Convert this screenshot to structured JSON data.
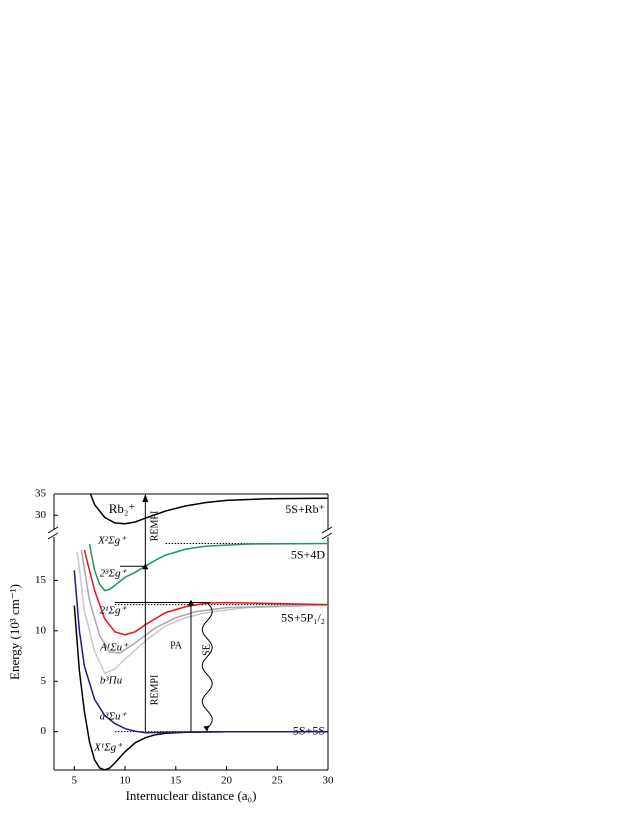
{
  "chart_data": {
    "type": "line",
    "x_label": "Internuclear distance (a₀)",
    "y_label": "Energy (10³ cm⁻¹)",
    "xlim": [
      3,
      30
    ],
    "xticks": [
      5,
      10,
      15,
      20,
      25,
      30
    ],
    "ylim": [
      -3.8,
      19.2
    ],
    "yticks": [
      0,
      5,
      10,
      15
    ],
    "ylim_upper": [
      27,
      35
    ],
    "yticks_upper": [
      30,
      35
    ],
    "series": [
      {
        "name": "X¹Σg⁺",
        "color": "#000000",
        "panel": "lower",
        "x": [
          5,
          5.5,
          6,
          6.5,
          7,
          7.5,
          8,
          8.5,
          9,
          10,
          11,
          12,
          13,
          14,
          16,
          20,
          30
        ],
        "values": [
          12.5,
          6,
          2,
          -1,
          -2.8,
          -3.6,
          -3.8,
          -3.6,
          -3.1,
          -2,
          -1.1,
          -0.6,
          -0.3,
          -0.15,
          -0.05,
          0,
          0
        ]
      },
      {
        "name": "a³Σu⁺",
        "color": "#1c1c8c",
        "panel": "lower",
        "x": [
          5,
          5.5,
          6,
          7,
          8,
          9,
          10,
          11,
          12,
          14,
          20,
          30
        ],
        "values": [
          16,
          10,
          6.5,
          3.2,
          1.6,
          0.8,
          0.3,
          0.05,
          -0.1,
          -0.05,
          0,
          0
        ]
      },
      {
        "name": "b³Πu",
        "color": "#c8c8c8",
        "panel": "lower",
        "x": [
          5.3,
          6,
          7,
          8,
          9,
          10,
          12,
          14,
          16,
          18,
          22,
          30
        ],
        "values": [
          17.8,
          12,
          8,
          5.8,
          6.2,
          7.2,
          9,
          10.5,
          11.3,
          11.8,
          12.3,
          12.55
        ]
      },
      {
        "name": "A¹Σu⁺",
        "color": "#a8a8a8",
        "panel": "lower",
        "x": [
          5.7,
          6.5,
          7.5,
          8.5,
          9.5,
          11,
          13,
          15,
          17,
          20,
          30
        ],
        "values": [
          18,
          13,
          9.5,
          7.9,
          7.8,
          8.8,
          10.3,
          11.3,
          11.9,
          12.3,
          12.58
        ]
      },
      {
        "name": "2¹Σg⁺",
        "color": "#e8131a",
        "panel": "lower",
        "x": [
          6,
          7,
          8,
          9,
          10,
          11,
          12,
          14,
          16,
          18,
          20,
          30
        ],
        "values": [
          18,
          14,
          11.2,
          9.9,
          9.6,
          9.9,
          10.6,
          11.8,
          12.4,
          12.75,
          12.8,
          12.6
        ]
      },
      {
        "name": "2³Σg⁺",
        "color": "#1b9a5b",
        "panel": "lower",
        "x": [
          6.5,
          7,
          7.5,
          8,
          8.5,
          9,
          10,
          11,
          12,
          13,
          14,
          16,
          18,
          22,
          30
        ],
        "values": [
          18.6,
          16,
          14.6,
          14,
          14.1,
          14.5,
          15.3,
          15.8,
          16.4,
          17,
          17.5,
          18.1,
          18.4,
          18.6,
          18.65
        ]
      },
      {
        "name": "X²Σg⁺",
        "color": "#000000",
        "panel": "upper",
        "x": [
          6.6,
          7,
          8,
          9,
          10,
          11,
          12,
          14,
          16,
          18,
          20,
          24,
          30
        ],
        "values": [
          35,
          32.5,
          29.5,
          28.2,
          28,
          28.4,
          29.3,
          31,
          32.2,
          33,
          33.5,
          33.9,
          34
        ]
      }
    ],
    "ion_label": "Rb₂⁺",
    "asymptotes": [
      {
        "label": "5S+Rb⁺",
        "value": 34,
        "panel": "upper"
      },
      {
        "label": "5S+4D",
        "value": 18.65,
        "panel": "lower"
      },
      {
        "label": "5S+5P₁/₂",
        "value": 12.6,
        "panel": "lower"
      },
      {
        "label": "5S+5S",
        "value": 0,
        "panel": "lower"
      }
    ],
    "annotations": [
      "REMPI",
      "REMPI",
      "PA",
      "SE"
    ]
  }
}
